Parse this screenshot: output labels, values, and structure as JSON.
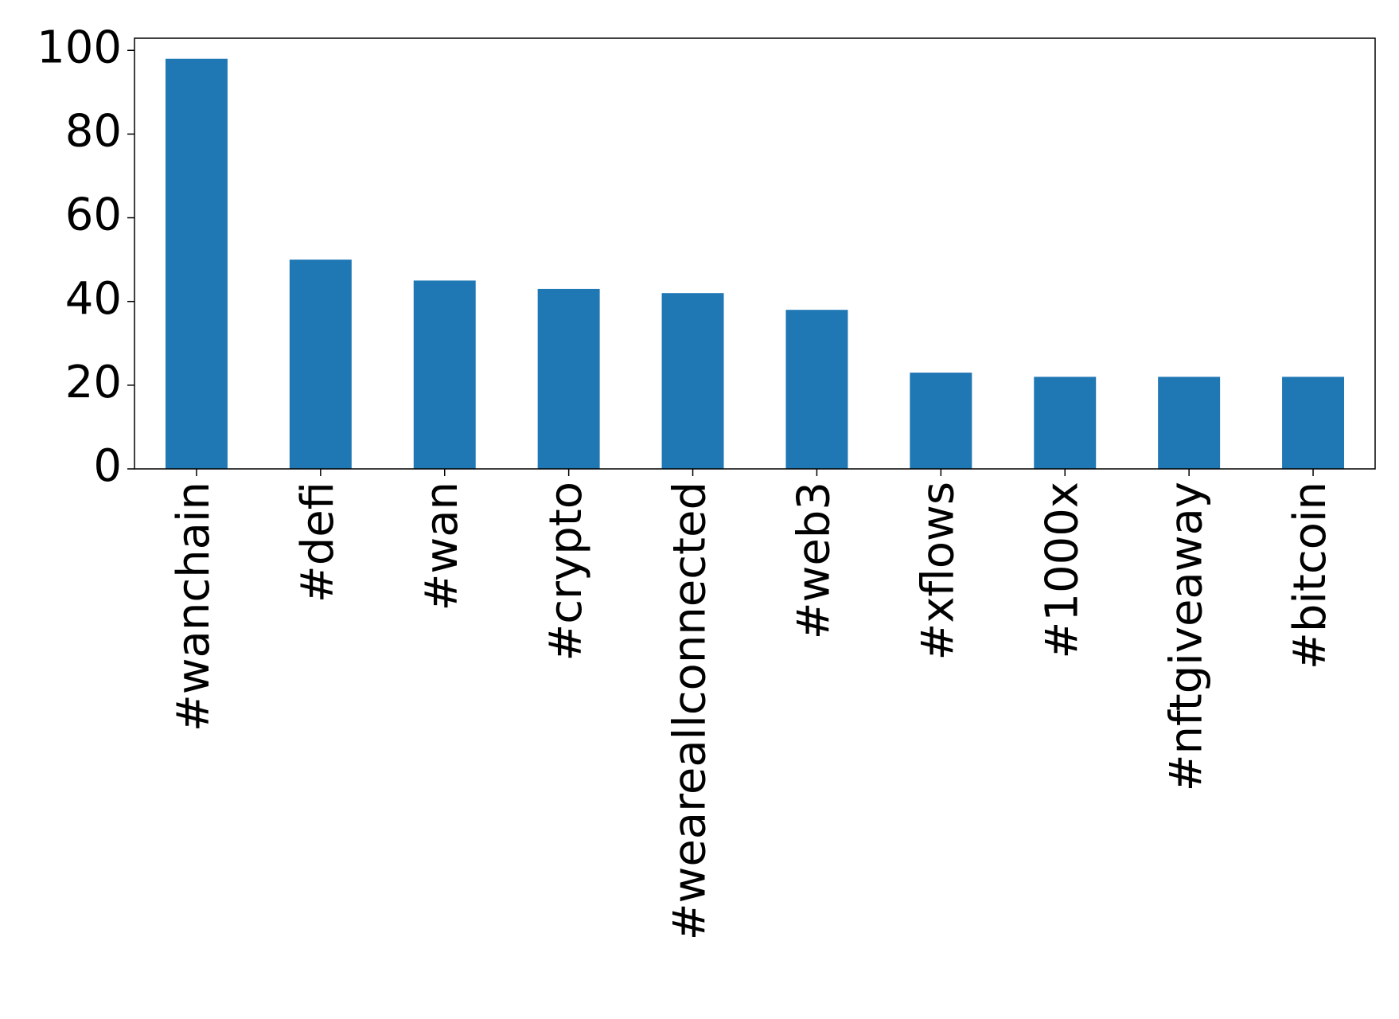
{
  "chart_data": {
    "type": "bar",
    "categories": [
      "#wanchain",
      "#defi",
      "#wan",
      "#crypto",
      "#weareallconnected",
      "#web3",
      "#xflows",
      "#1000x",
      "#nftgiveaway",
      "#bitcoin"
    ],
    "values": [
      98,
      50,
      45,
      43,
      42,
      38,
      23,
      22,
      22,
      22
    ],
    "color": "#1f77b4",
    "ylim": [
      0,
      102.9
    ],
    "yticks": [
      0,
      20,
      40,
      60,
      80,
      100
    ],
    "grid": false
  }
}
